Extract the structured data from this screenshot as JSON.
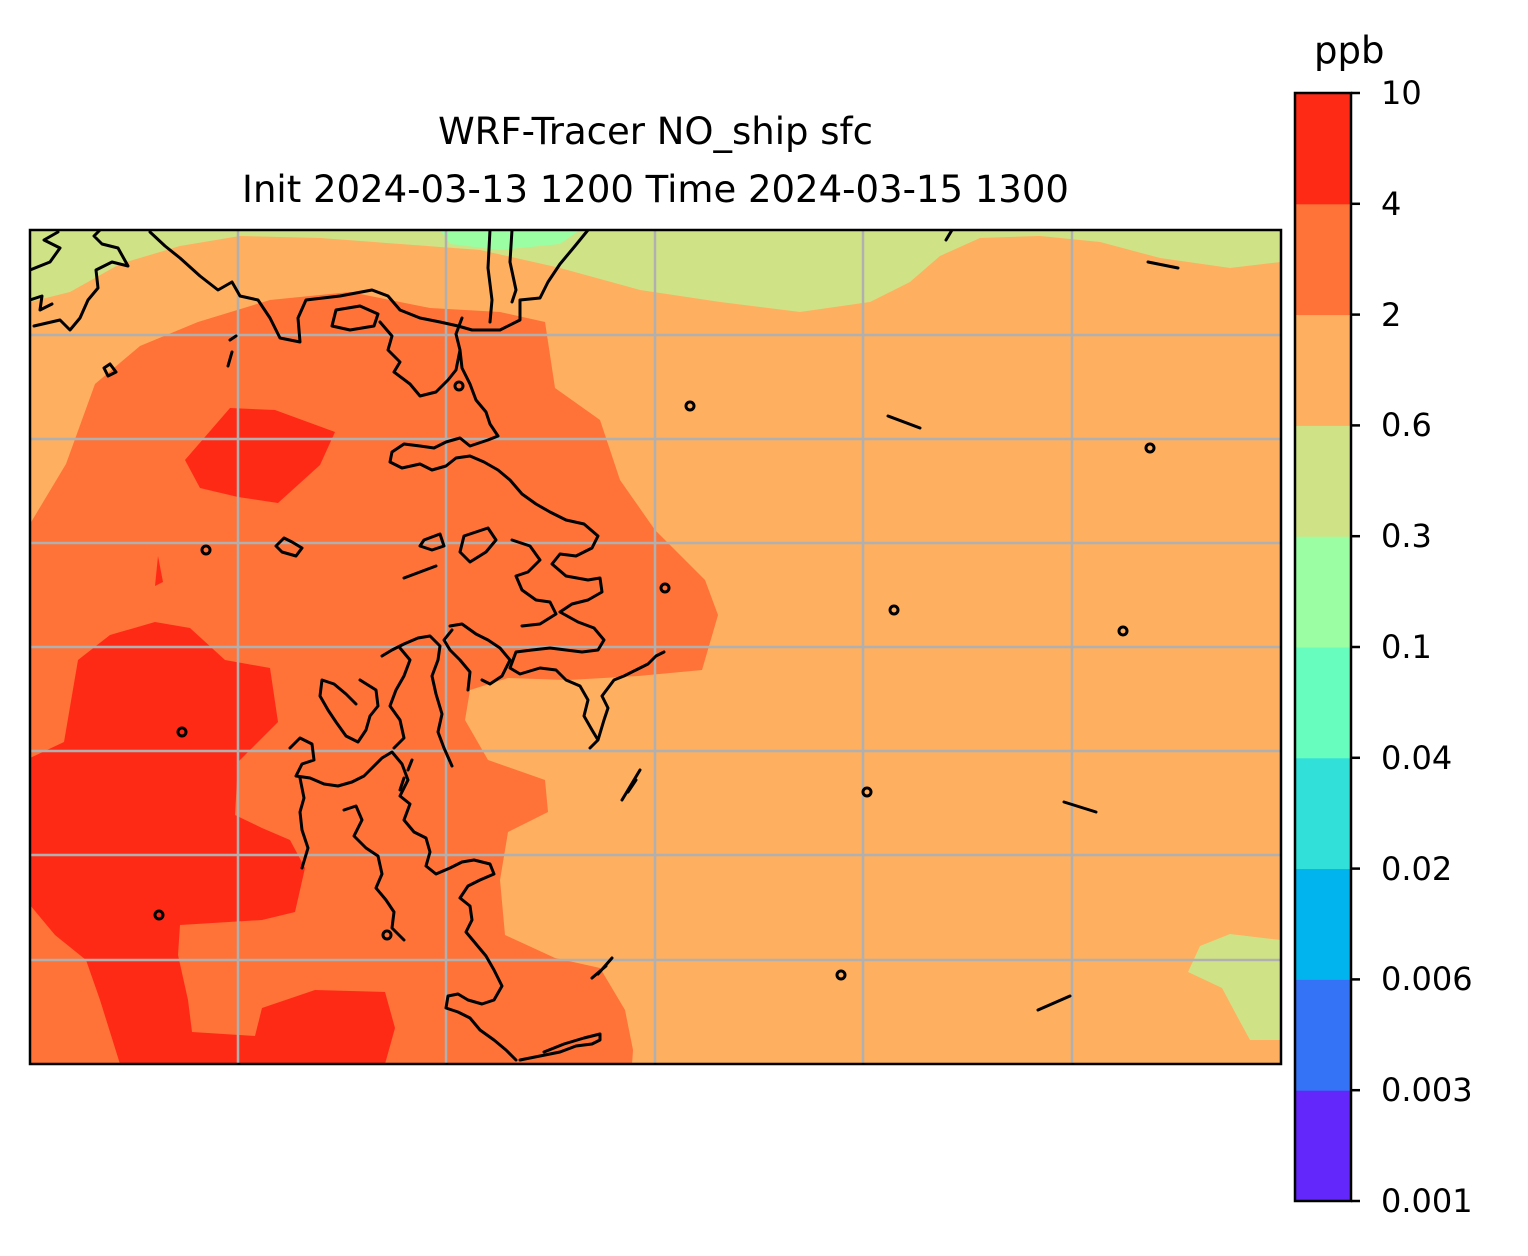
{
  "title": {
    "line1": "WRF-Tracer NO_ship sfc",
    "line2": "Init 2024-03-13 1200 Time 2024-03-15 1300"
  },
  "colorbar": {
    "unit": "ppb",
    "levels": [
      "0.001",
      "0.003",
      "0.006",
      "0.02",
      "0.04",
      "0.1",
      "0.3",
      "0.6",
      "2",
      "4",
      "10"
    ],
    "colors": [
      "#6327fb",
      "#3473f6",
      "#01b4ed",
      "#31e0d8",
      "#67fdbe",
      "#9bfea3",
      "#cfe285",
      "#feaf5f",
      "#ff7238",
      "#ff2a15"
    ]
  },
  "map": {
    "fill_levels_ppb": [
      "0.3-0.6",
      "0.6-2",
      "2-4",
      "4-10"
    ],
    "gridlines": true,
    "coastline_color": "#000000",
    "gridline_color": "#b0b0b0"
  }
}
